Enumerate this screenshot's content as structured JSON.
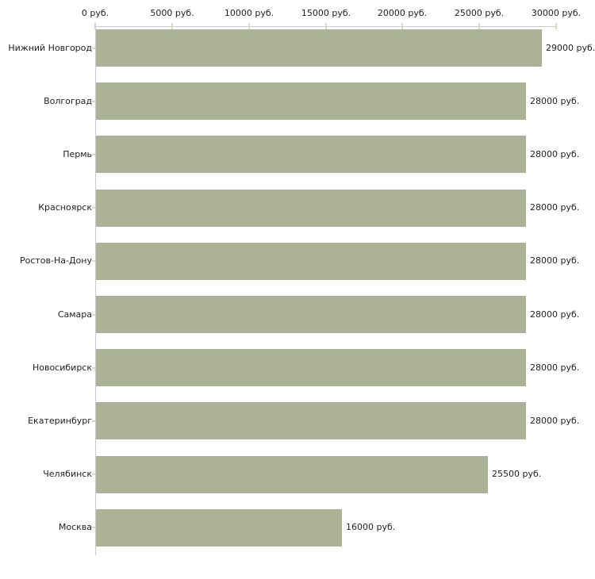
{
  "chart_data": {
    "type": "bar",
    "orientation": "horizontal",
    "title": "",
    "xlabel": "",
    "ylabel": "",
    "unit": "руб.",
    "categories": [
      "Нижний Новгород",
      "Волгоград",
      "Пермь",
      "Красноярск",
      "Ростов-На-Дону",
      "Самара",
      "Новосибирск",
      "Екатеринбург",
      "Челябинск",
      "Москва"
    ],
    "values": [
      29000,
      28000,
      28000,
      28000,
      28000,
      28000,
      28000,
      28000,
      25500,
      16000
    ],
    "value_labels": [
      "29000 руб.",
      "28000 руб.",
      "28000 руб.",
      "28000 руб.",
      "28000 руб.",
      "28000 руб.",
      "28000 руб.",
      "28000 руб.",
      "25500 руб.",
      "16000 руб."
    ],
    "xlim": [
      0,
      30000
    ],
    "x_ticks": [
      0,
      5000,
      10000,
      15000,
      20000,
      25000,
      30000
    ],
    "x_tick_labels": [
      "0 руб.",
      "5000 руб.",
      "10000 руб.",
      "15000 руб.",
      "20000 руб.",
      "25000 руб.",
      "30000 руб."
    ],
    "axis_position": "top",
    "grid": false,
    "legend": false,
    "bar_color": "#abb296"
  },
  "colors": {
    "bar": "#abb296",
    "axis_line": "#c9c9c9",
    "tick_mark": "#d9d9c2",
    "text": "#1f1f1f",
    "background": "#ffffff"
  }
}
